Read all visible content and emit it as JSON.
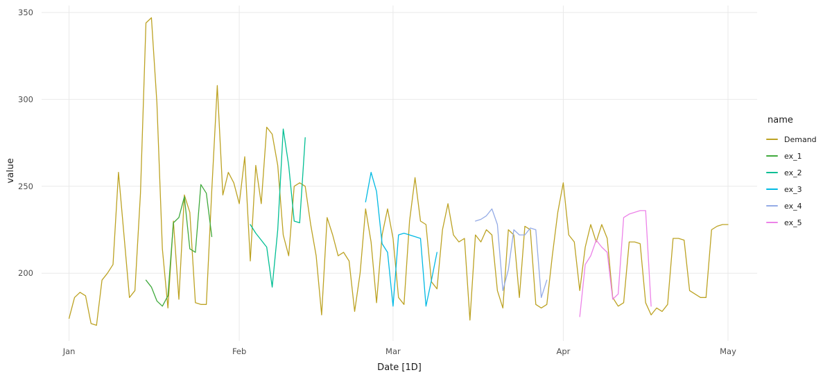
{
  "chart_data": {
    "type": "line",
    "title": "",
    "xlabel": "Date [1D]",
    "ylabel": "value",
    "legend_title": "name",
    "legend_position": "right",
    "grid": true,
    "grid_color": "#E9E9E9",
    "axis_text_color": "#4D4D4D",
    "axis_title_color": "#1A1A1A",
    "background_color": "#FFFFFF",
    "y_ticks": [
      200,
      250,
      300,
      350
    ],
    "ylim": [
      161,
      354
    ],
    "xlim_days": [
      -5,
      125.3
    ],
    "x_unit": "days since Jan 1",
    "x_ticks": [
      {
        "label": "Jan",
        "day": 0
      },
      {
        "label": "Feb",
        "day": 31
      },
      {
        "label": "Mar",
        "day": 59
      },
      {
        "label": "Apr",
        "day": 90
      },
      {
        "label": "May",
        "day": 120
      }
    ],
    "series": [
      {
        "name": "Demand",
        "color": "#BCA222",
        "start_day": 0,
        "values": [
          174,
          186,
          189,
          187,
          171,
          170,
          196,
          200,
          205,
          258,
          222,
          186,
          190,
          246,
          344,
          347,
          298,
          214,
          180,
          230,
          185,
          245,
          235,
          183,
          182,
          182,
          248,
          308,
          245,
          258,
          252,
          240,
          267,
          207,
          262,
          240,
          284,
          280,
          262,
          222,
          210,
          250,
          252,
          250,
          228,
          210,
          176,
          232,
          222,
          210,
          212,
          207,
          178,
          200,
          237,
          218,
          183,
          222,
          237,
          220,
          186,
          182,
          230,
          255,
          230,
          228,
          195,
          191,
          225,
          240,
          222,
          218,
          220,
          173,
          222,
          218,
          225,
          222,
          190,
          180,
          225,
          222,
          186,
          227,
          225,
          182,
          180,
          182,
          210,
          235,
          252,
          222,
          218,
          190,
          215,
          228,
          218,
          228,
          220,
          186,
          181,
          183,
          218,
          218,
          217,
          183,
          176,
          180,
          178,
          182,
          220,
          220,
          219,
          190,
          188,
          186,
          186,
          225,
          227,
          228,
          228
        ]
      },
      {
        "name": "ex_1",
        "color": "#3FA93C",
        "start_day": 14,
        "values": [
          196,
          192,
          184,
          181,
          187,
          229,
          232,
          244,
          214,
          212,
          251,
          246,
          221
        ]
      },
      {
        "name": "ex_2",
        "color": "#00BE93",
        "start_day": 33,
        "values": [
          228,
          223,
          219,
          215,
          192,
          225,
          283,
          262,
          230,
          229,
          278
        ]
      },
      {
        "name": "ex_3",
        "color": "#00B9E3",
        "start_day": 54,
        "values": [
          241,
          258,
          247,
          217,
          212,
          181,
          222,
          223,
          222,
          221,
          220,
          181,
          196,
          212
        ]
      },
      {
        "name": "ex_4",
        "color": "#94ABE6",
        "start_day": 74,
        "values": [
          230,
          231,
          233,
          237,
          228,
          190,
          202,
          225,
          222,
          222,
          226,
          225,
          186,
          196
        ]
      },
      {
        "name": "ex_5",
        "color": "#EC82E8",
        "start_day": 93,
        "values": [
          175,
          205,
          210,
          219,
          215,
          212,
          185,
          188,
          232,
          234,
          235,
          236,
          236,
          181
        ]
      }
    ]
  }
}
